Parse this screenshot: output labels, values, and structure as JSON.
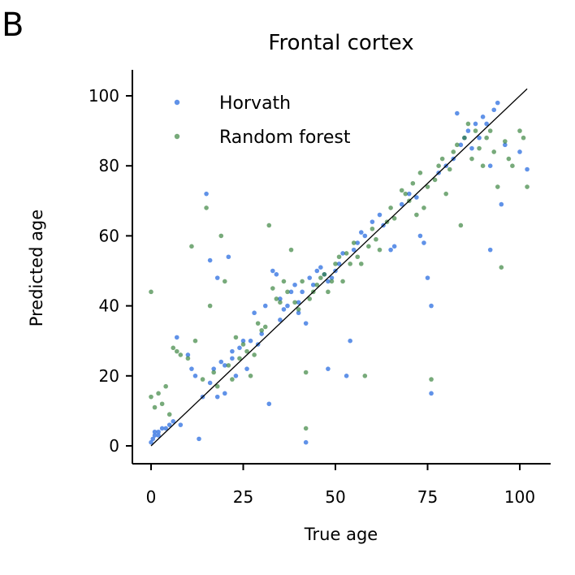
{
  "panel_label": "B",
  "chart_data": {
    "type": "scatter",
    "title": "Frontal cortex",
    "xlabel": "True age",
    "ylabel": "Predicted age",
    "xlim": [
      -5,
      108
    ],
    "ylim": [
      -5,
      108
    ],
    "xticks": [
      0,
      25,
      50,
      75,
      100
    ],
    "yticks": [
      0,
      20,
      40,
      60,
      80,
      100
    ],
    "grid": false,
    "legend_position": "top-left",
    "identity_line": [
      [
        0,
        0
      ],
      [
        102,
        102
      ]
    ],
    "series": [
      {
        "name": "Horvath",
        "color": "#4f86e6",
        "points": [
          [
            0,
            1
          ],
          [
            0.5,
            2
          ],
          [
            1,
            3
          ],
          [
            1,
            4
          ],
          [
            2,
            3
          ],
          [
            2,
            4
          ],
          [
            3,
            5
          ],
          [
            4,
            5
          ],
          [
            5,
            6
          ],
          [
            6,
            7
          ],
          [
            8,
            6
          ],
          [
            7,
            31
          ],
          [
            10,
            26
          ],
          [
            11,
            22
          ],
          [
            12,
            20
          ],
          [
            13,
            2
          ],
          [
            14,
            14
          ],
          [
            15,
            72
          ],
          [
            16,
            53
          ],
          [
            16,
            18
          ],
          [
            17,
            22
          ],
          [
            18,
            14
          ],
          [
            18,
            48
          ],
          [
            19,
            24
          ],
          [
            20,
            23
          ],
          [
            20,
            15
          ],
          [
            21,
            54
          ],
          [
            22,
            27
          ],
          [
            22,
            25
          ],
          [
            23,
            20
          ],
          [
            24,
            28
          ],
          [
            25,
            30
          ],
          [
            26,
            22
          ],
          [
            27,
            30
          ],
          [
            28,
            38
          ],
          [
            29,
            29
          ],
          [
            30,
            32
          ],
          [
            31,
            40
          ],
          [
            32,
            12
          ],
          [
            33,
            50
          ],
          [
            34,
            49
          ],
          [
            35,
            42
          ],
          [
            35,
            36
          ],
          [
            36,
            39
          ],
          [
            37,
            40
          ],
          [
            38,
            44
          ],
          [
            39,
            46
          ],
          [
            40,
            38
          ],
          [
            40,
            41
          ],
          [
            41,
            44
          ],
          [
            42,
            1
          ],
          [
            42,
            35
          ],
          [
            43,
            48
          ],
          [
            44,
            46
          ],
          [
            45,
            50
          ],
          [
            46,
            51
          ],
          [
            47,
            49
          ],
          [
            48,
            47
          ],
          [
            48,
            22
          ],
          [
            49,
            48
          ],
          [
            50,
            50
          ],
          [
            51,
            52
          ],
          [
            52,
            55
          ],
          [
            53,
            20
          ],
          [
            54,
            30
          ],
          [
            55,
            56
          ],
          [
            56,
            58
          ],
          [
            57,
            61
          ],
          [
            58,
            60
          ],
          [
            60,
            64
          ],
          [
            62,
            66
          ],
          [
            63,
            63
          ],
          [
            65,
            56
          ],
          [
            66,
            57
          ],
          [
            68,
            69
          ],
          [
            70,
            72
          ],
          [
            72,
            71
          ],
          [
            73,
            60
          ],
          [
            74,
            58
          ],
          [
            75,
            48
          ],
          [
            76,
            15
          ],
          [
            76,
            40
          ],
          [
            78,
            78
          ],
          [
            80,
            80
          ],
          [
            82,
            82
          ],
          [
            83,
            95
          ],
          [
            84,
            86
          ],
          [
            85,
            88
          ],
          [
            86,
            90
          ],
          [
            87,
            85
          ],
          [
            88,
            92
          ],
          [
            89,
            88
          ],
          [
            90,
            94
          ],
          [
            91,
            92
          ],
          [
            92,
            56
          ],
          [
            92,
            80
          ],
          [
            93,
            96
          ],
          [
            94,
            98
          ],
          [
            95,
            69
          ],
          [
            96,
            86
          ],
          [
            100,
            84
          ],
          [
            102,
            79
          ]
        ]
      },
      {
        "name": "Random forest",
        "color": "#2e7d32",
        "points": [
          [
            0,
            44
          ],
          [
            0,
            14
          ],
          [
            1,
            11
          ],
          [
            2,
            15
          ],
          [
            3,
            12
          ],
          [
            4,
            17
          ],
          [
            5,
            9
          ],
          [
            6,
            28
          ],
          [
            7,
            27
          ],
          [
            8,
            26
          ],
          [
            10,
            25
          ],
          [
            11,
            57
          ],
          [
            12,
            30
          ],
          [
            14,
            19
          ],
          [
            15,
            68
          ],
          [
            16,
            40
          ],
          [
            17,
            21
          ],
          [
            18,
            17
          ],
          [
            19,
            60
          ],
          [
            20,
            47
          ],
          [
            21,
            23
          ],
          [
            22,
            19
          ],
          [
            23,
            31
          ],
          [
            24,
            25
          ],
          [
            25,
            29
          ],
          [
            26,
            27
          ],
          [
            27,
            20
          ],
          [
            28,
            26
          ],
          [
            29,
            35
          ],
          [
            30,
            33
          ],
          [
            31,
            34
          ],
          [
            32,
            63
          ],
          [
            33,
            45
          ],
          [
            34,
            42
          ],
          [
            35,
            41
          ],
          [
            36,
            47
          ],
          [
            37,
            44
          ],
          [
            38,
            56
          ],
          [
            39,
            41
          ],
          [
            40,
            39
          ],
          [
            41,
            47
          ],
          [
            42,
            5
          ],
          [
            42,
            21
          ],
          [
            43,
            42
          ],
          [
            44,
            44
          ],
          [
            45,
            46
          ],
          [
            46,
            48
          ],
          [
            47,
            49
          ],
          [
            48,
            44
          ],
          [
            49,
            47
          ],
          [
            50,
            52
          ],
          [
            51,
            54
          ],
          [
            52,
            47
          ],
          [
            53,
            55
          ],
          [
            54,
            52
          ],
          [
            55,
            58
          ],
          [
            56,
            54
          ],
          [
            57,
            52
          ],
          [
            58,
            20
          ],
          [
            59,
            57
          ],
          [
            60,
            62
          ],
          [
            61,
            59
          ],
          [
            62,
            56
          ],
          [
            64,
            64
          ],
          [
            65,
            68
          ],
          [
            66,
            65
          ],
          [
            68,
            73
          ],
          [
            69,
            72
          ],
          [
            70,
            70
          ],
          [
            71,
            75
          ],
          [
            72,
            66
          ],
          [
            73,
            78
          ],
          [
            74,
            68
          ],
          [
            75,
            74
          ],
          [
            76,
            19
          ],
          [
            77,
            76
          ],
          [
            78,
            80
          ],
          [
            79,
            82
          ],
          [
            80,
            72
          ],
          [
            81,
            79
          ],
          [
            82,
            84
          ],
          [
            83,
            86
          ],
          [
            84,
            63
          ],
          [
            85,
            88
          ],
          [
            86,
            92
          ],
          [
            87,
            82
          ],
          [
            88,
            90
          ],
          [
            89,
            85
          ],
          [
            90,
            80
          ],
          [
            91,
            88
          ],
          [
            92,
            90
          ],
          [
            93,
            84
          ],
          [
            94,
            74
          ],
          [
            95,
            51
          ],
          [
            96,
            87
          ],
          [
            97,
            82
          ],
          [
            98,
            80
          ],
          [
            100,
            90
          ],
          [
            101,
            88
          ],
          [
            102,
            74
          ]
        ]
      }
    ]
  }
}
